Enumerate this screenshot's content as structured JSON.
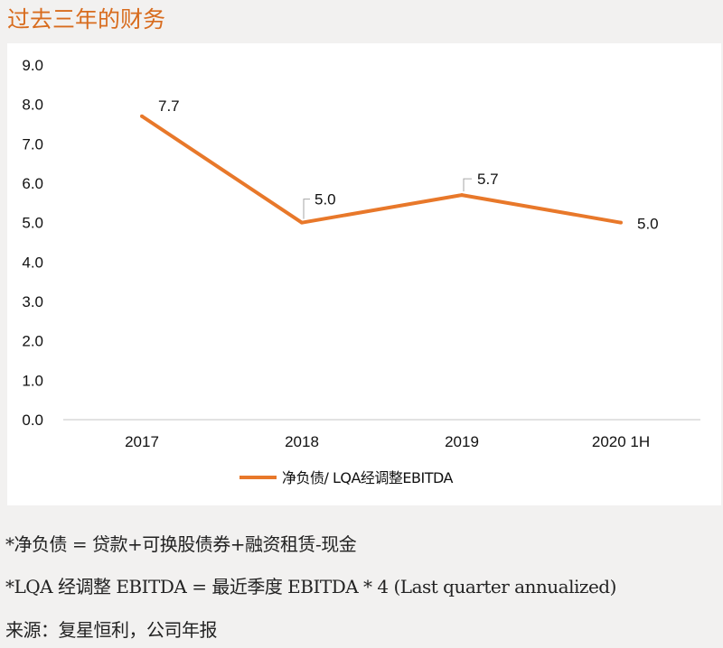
{
  "title": "过去三年的财务",
  "chart_data": {
    "type": "line",
    "categories": [
      "2017",
      "2018",
      "2019",
      "2020 1H"
    ],
    "series": [
      {
        "name": "净负债/ LQA经调整EBITDA",
        "values": [
          7.7,
          5.0,
          5.7,
          5.0
        ],
        "color": "#e8782a"
      }
    ],
    "data_labels": [
      "7.7",
      "5.0",
      "5.7",
      "5.0"
    ],
    "yticks": [
      "0.0",
      "1.0",
      "2.0",
      "3.0",
      "4.0",
      "5.0",
      "6.0",
      "7.0",
      "8.0",
      "9.0"
    ],
    "ylim": [
      0,
      9
    ],
    "grid": false,
    "legend": "bottom"
  },
  "notes": [
    "*净负债 = 贷款+可换股债券+融资租赁-现金",
    "*LQA 经调整 EBITDA = 最近季度 EBITDA * 4 (Last quarter annualized)",
    "来源：复星恒利，公司年报"
  ]
}
